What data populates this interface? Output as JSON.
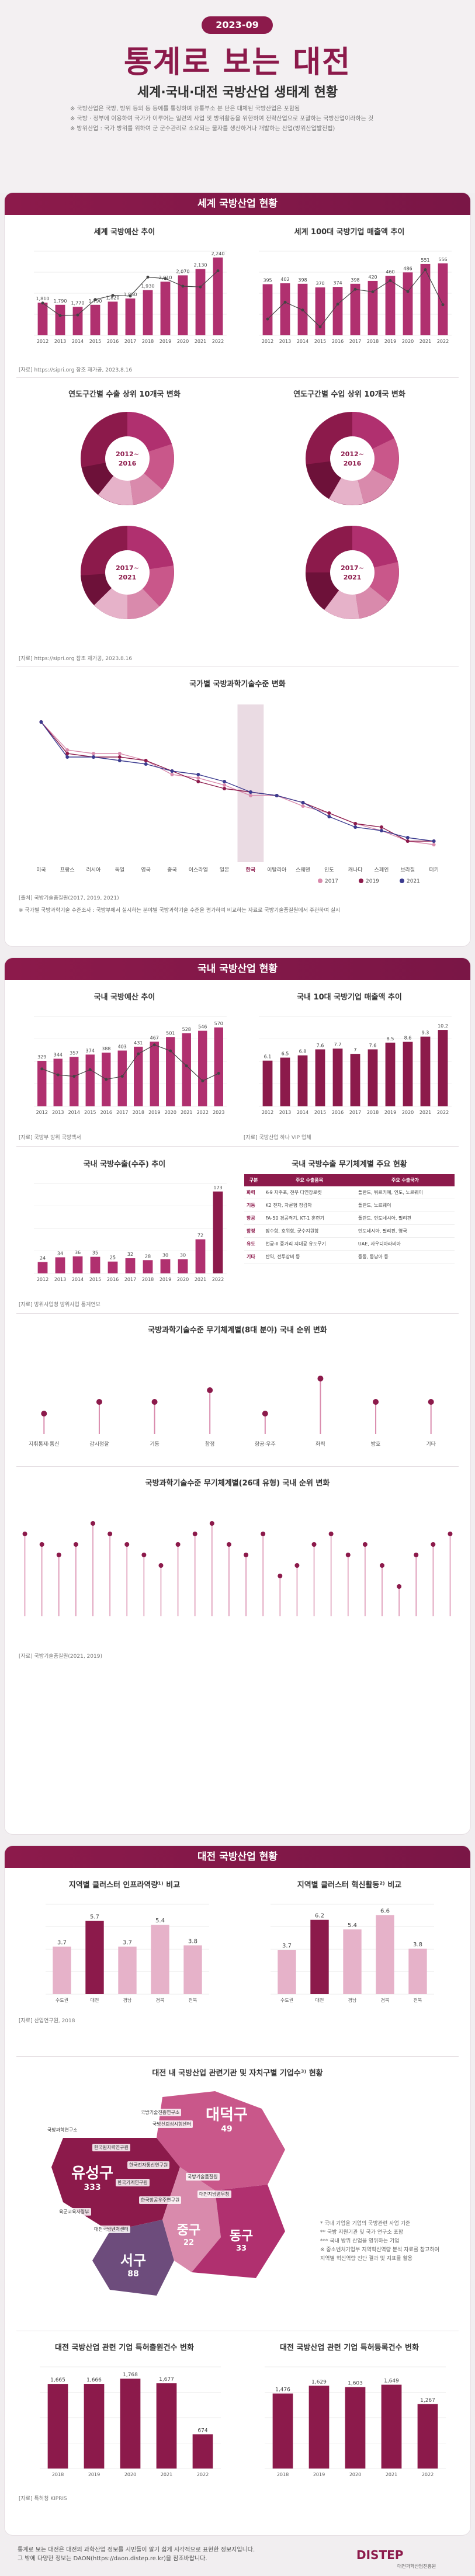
{
  "header": {
    "badge": "2023-09",
    "title": "통계로 보는 대전",
    "subtitle": "세계·국내·대전 국방산업 생태계 현황",
    "notes": [
      "※ 국방산업은 국방, 방위 등의 등 등에를 통칭하며 유통부소 분 단은 대체된 국방산업은 포함됨",
      "※ 국방 · 정부에 이용하여 국가가 이루어는 일련의 사업 및 방위활동을 위한하여 전략산업으로 포괄하는 국방산업이라하는 것",
      "※ 방위산업 : 국가 방위를 위하여 군 군수관리로 소요되는 물자를 생산하거나 개발하는 산업(방위산업발전법)"
    ]
  },
  "sections": {
    "world": "세계 국방산업 현황",
    "domestic": "국내 국방산업 현황",
    "daejeon": "대전 국방산업 현황"
  },
  "world": {
    "budget_title": "세계 국방예산 추이",
    "top100_title": "세계 100대 국방기업 매출액 추이",
    "src1": "[자료] https://sipri.org 참조 재가공, 2023.8.16",
    "export_title": "연도구간별 수출 상위 10개국 변화",
    "import_title": "연도구간별 수입 상위 10개국 변화",
    "src2": "[자료] https://sipri.org 참조 재가공, 2023.8.16",
    "tech_title": "국가별 국방과학기술수준 변화",
    "src3": "[출처] 국방기술품질원(2017, 2019, 2021)",
    "tech_note": "※ 국가별 국방과학기술 수준조사 : 국방부에서 실시하는 분야별 국방과학기술 수준을 평가하여 비교하는 자료로 국방기술품질원에서 주관하여 실시"
  },
  "domestic": {
    "budget_title": "국내 국방예산 추이",
    "top10_title": "국내 10대 국방기업 매출액 추이",
    "src1": "[자료] 국방부 방위 국방백서",
    "src1b": "[자료] 국방산업 하나 VIP 업체",
    "export_title": "국내 국방수출(수주) 추이",
    "src2": "[자료] 방위사업청 방위사업 통계연보",
    "weapon_title": "국내 국방수출 무기체계별 주요 현황",
    "rank_title": "국방과학기술수준 무기체계별(8대 분야) 국내 순위 변화",
    "rank2_title": "국방과학기술수준 무기체계별(26대 유형) 국내 순위 변화",
    "src3": "[자료] 국방기술품질원(2021, 2019)"
  },
  "daejeon": {
    "infra_title": "지역별 클러스터 인프라역량¹⁾ 비교",
    "innov_title": "지역별 클러스터 혁신활동²⁾ 비교",
    "rank1": "1위",
    "rank2": "2위",
    "src1": "[자료] 산업연구원, 2018",
    "map_title": "대전 내 국방산업 관련기관 및 자치구별 기업수³⁾ 현황",
    "rnd_title": "대전 국방산업 관련 기업 특허출원건수 변화",
    "reg_title": "대전 국방산업 관련 기업 특허등록건수 변화",
    "src2": "[자료] 특허청 KIPRIS",
    "map_note": [
      "* 국내 기업을 기업의 국방관련 사업 기준",
      "** 국방 지원기관 및 국가 연구소 포함",
      "*** 국내 방위 산업을 영위하는 기업",
      "※ 중소벤처기업부 지역혁신역량 분석 자료를 참고하여",
      "지역별 혁신역량 진단 결과 및 지표를 활용"
    ],
    "districts": [
      {
        "name": "대덕구",
        "count": "49"
      },
      {
        "name": "유성구",
        "count": "333"
      },
      {
        "name": "서구",
        "count": "88"
      },
      {
        "name": "중구",
        "count": "22"
      },
      {
        "name": "동구",
        "count": "33"
      }
    ],
    "institutions": [
      "국방과학연구소",
      "국방기술진흥연구소",
      "한국원자력연구원",
      "한국전자통신연구원",
      "한국기계연구원",
      "한국항공우주연구원",
      "국방신뢰성시험센터",
      "육군교육사령부",
      "대전지방병무청",
      "대전국방벤처센터",
      "국방기술품질원"
    ]
  },
  "footer": {
    "text": "통계로 보는 대전은 대전의 과학산업 정보를 시민들이 알기 쉽게 시각적으로 표현한 정보지입니다.",
    "text2": "그 밖에 다양한 정보는 DAON(https://daon.distep.re.kr)을 참조바랍니다.",
    "logo": "DISTEP",
    "logo_sub": "대전과학산업진흥원"
  },
  "chart_data": [
    {
      "type": "bar",
      "title": "세계 국방예산 추이",
      "categories": [
        "2012",
        "2013",
        "2014",
        "2015",
        "2016",
        "2017",
        "2018",
        "2019",
        "2020",
        "2021",
        "2022"
      ],
      "series": [
        {
          "name": "국방예산",
          "values": [
            1810,
            1790,
            1770,
            1790,
            1820,
            1850,
            1930,
            2010,
            2070,
            2130,
            2240
          ]
        },
        {
          "name": "증가율",
          "values": [
            0.6,
            -1.2,
            -1.1,
            1.1,
            1.7,
            1.6,
            4.3,
            4.1,
            3.0,
            2.9,
            5.2
          ]
        }
      ],
      "ylim": [
        1500,
        2300
      ]
    },
    {
      "type": "bar",
      "title": "세계 100대 국방기업 매출액 추이",
      "categories": [
        "2012",
        "2013",
        "2014",
        "2015",
        "2016",
        "2017",
        "2018",
        "2019",
        "2020",
        "2021",
        "2022"
      ],
      "series": [
        {
          "name": "매출액",
          "values": [
            395,
            402,
            398,
            370,
            374,
            398,
            420,
            460,
            486,
            551,
            556
          ]
        },
        {
          "name": "증가율",
          "values": [
            -4.2,
            1.8,
            -1.0,
            -7.0,
            1.1,
            6.4,
            5.5,
            9.5,
            5.6,
            13.4,
            0.9
          ]
        }
      ]
    },
    {
      "type": "line",
      "title": "국가별 국방과학기술수준 변화",
      "categories": [
        "미국",
        "프랑스",
        "러시아",
        "독일",
        "영국",
        "중국",
        "이스라엘",
        "일본",
        "한국",
        "이탈리아",
        "스웨덴",
        "인도",
        "캐나다",
        "스페인",
        "브라질",
        "터키"
      ],
      "series": [
        {
          "name": "2017",
          "values": [
            100,
            92,
            91,
            91,
            89,
            85,
            84,
            82,
            79,
            79,
            76,
            74,
            71,
            69,
            66,
            65
          ]
        },
        {
          "name": "2019",
          "values": [
            100,
            91,
            90,
            90,
            89,
            86,
            83,
            81,
            80,
            79,
            77,
            74,
            71,
            70,
            66,
            66
          ]
        },
        {
          "name": "2021",
          "values": [
            100,
            90,
            90,
            89,
            88,
            86,
            85,
            83,
            80,
            79,
            77,
            73,
            70,
            69,
            67,
            66
          ]
        }
      ]
    },
    {
      "type": "bar",
      "title": "국내 국방예산 추이",
      "categories": [
        "2012",
        "2013",
        "2014",
        "2015",
        "2016",
        "2017",
        "2018",
        "2019",
        "2020",
        "2021",
        "2022",
        "2023"
      ],
      "series": [
        {
          "name": "국방비",
          "values": [
            329,
            344,
            357,
            374,
            388,
            403,
            431,
            467,
            501,
            528,
            546,
            570
          ]
        },
        {
          "name": "증가율",
          "values": [
            5.0,
            4.2,
            4.0,
            4.9,
            3.6,
            4.0,
            7.0,
            8.2,
            7.4,
            5.4,
            3.4,
            4.4
          ]
        }
      ]
    },
    {
      "type": "bar",
      "title": "국내 10대 국방기업 매출액 추이",
      "categories": [
        "2012",
        "2013",
        "2014",
        "2015",
        "2016",
        "2017",
        "2018",
        "2019",
        "2020",
        "2021",
        "2022"
      ],
      "series": [
        {
          "name": "매출액",
          "values": [
            6.1,
            6.5,
            6.8,
            7.6,
            7.7,
            7.0,
            7.6,
            8.5,
            8.6,
            9.3,
            10.2
          ]
        }
      ]
    },
    {
      "type": "bar",
      "title": "국내 국방수출(수주) 추이",
      "categories": [
        "2012",
        "2013",
        "2014",
        "2015",
        "2016",
        "2017",
        "2018",
        "2019",
        "2020",
        "2021",
        "2022"
      ],
      "series": [
        {
          "name": "수출",
          "values": [
            24,
            34,
            36,
            35,
            25,
            32,
            28,
            30,
            30,
            72,
            173
          ]
        }
      ]
    },
    {
      "type": "bar",
      "title": "지역별 클러스터 인프라역량 비교",
      "categories": [
        "수도권",
        "대전",
        "경남",
        "경북",
        "전북"
      ],
      "values": [
        3.7,
        5.7,
        3.7,
        5.4,
        3.8
      ]
    },
    {
      "type": "bar",
      "title": "지역별 클러스터 혁신활동 비교",
      "categories": [
        "수도권",
        "대전",
        "경남",
        "경북",
        "전북"
      ],
      "values": [
        3.7,
        6.2,
        5.4,
        6.6,
        3.8
      ]
    },
    {
      "type": "bar",
      "title": "대전 국방산업 관련 기업 특허출원건수 변화",
      "categories": [
        "2018",
        "2019",
        "2020",
        "2021",
        "2022"
      ],
      "values": [
        1665,
        1666,
        1768,
        1677,
        674
      ]
    },
    {
      "type": "bar",
      "title": "대전 국방산업 관련 기업 특허등록건수 변화",
      "categories": [
        "2018",
        "2019",
        "2020",
        "2021",
        "2022"
      ],
      "values": [
        1476,
        1629,
        1603,
        1649,
        1267
      ]
    }
  ],
  "colors": {
    "brand": "#8c1a4b",
    "accent": "#b0306f",
    "light": "#d7a6c0"
  }
}
